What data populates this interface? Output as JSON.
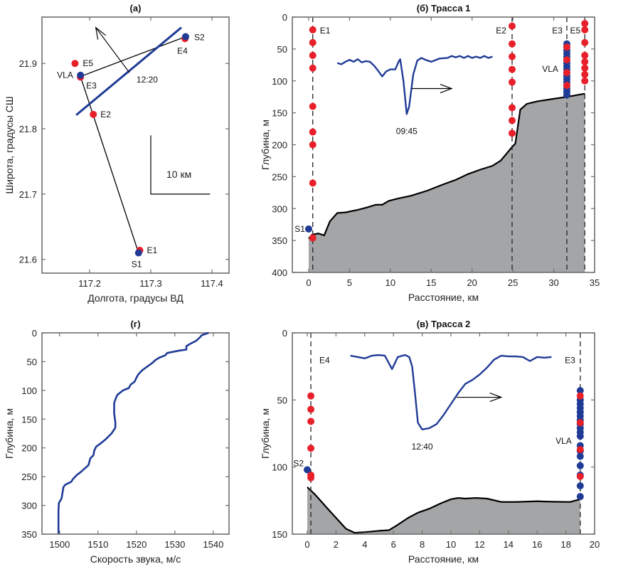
{
  "colors": {
    "red": "#e8202a",
    "blue": "#1f3b96",
    "line": "#1f3b96",
    "seabed": "#a3a5a7",
    "axis": "#6e6e6e"
  },
  "chart_data": [
    {
      "id": "a",
      "type": "scatter",
      "title": "(a)",
      "xlabel": "Долгота, градусы ВД",
      "ylabel": "Широта, градусы СШ",
      "xlim": [
        117.122,
        117.428
      ],
      "ylim": [
        21.579,
        21.971
      ],
      "xticks": [
        117.2,
        117.3,
        117.4
      ],
      "xtick_labels": [
        "117.2",
        "117.3",
        "117.4"
      ],
      "yticks": [
        21.6,
        21.7,
        21.8,
        21.9
      ],
      "ytick_labels": [
        "21.6",
        "21.7",
        "21.8",
        "21.9"
      ],
      "points": [
        {
          "name": "E1",
          "x": 117.282,
          "y": 21.614,
          "color": "red",
          "label": "E1"
        },
        {
          "name": "S1",
          "x": 117.28,
          "y": 21.61,
          "color": "blue",
          "label": "S1"
        },
        {
          "name": "E2",
          "x": 117.206,
          "y": 21.822,
          "color": "red",
          "label": "E2"
        },
        {
          "name": "E3",
          "x": 117.185,
          "y": 21.879,
          "color": "red",
          "label": "E3"
        },
        {
          "name": "VLA",
          "x": 117.185,
          "y": 21.882,
          "color": "blue",
          "label": "VLA"
        },
        {
          "name": "E5",
          "x": 117.176,
          "y": 21.9,
          "color": "red",
          "label": "E5"
        },
        {
          "name": "E4",
          "x": 117.356,
          "y": 21.938,
          "color": "red",
          "label": "E4"
        },
        {
          "name": "S2",
          "x": 117.357,
          "y": 21.941,
          "color": "blue",
          "label": "S2"
        }
      ],
      "tracks": [
        {
          "name": "track-1",
          "points": [
            [
              117.28,
              21.61
            ],
            [
              117.185,
              21.88
            ]
          ]
        },
        {
          "name": "track-2",
          "points": [
            [
              117.185,
              21.88
            ],
            [
              117.357,
              21.941
            ]
          ]
        }
      ],
      "front_line": {
        "points": [
          [
            117.178,
            21.821
          ],
          [
            117.35,
            21.955
          ]
        ],
        "label": "12:20"
      },
      "propagation_arrow": {
        "from": [
          117.265,
          21.886
        ],
        "to": [
          117.21,
          21.955
        ]
      },
      "scale_bar": {
        "label": "10 км",
        "corner": [
          117.3,
          21.7
        ],
        "x_end": 117.397,
        "y_end": 21.79
      }
    },
    {
      "id": "b",
      "type": "area",
      "title": "(б) Трасса 1",
      "xlabel": "Расстояние, км",
      "ylabel": "Глубина, м",
      "xlim": [
        -2,
        35
      ],
      "ylim": [
        0,
        400
      ],
      "y_inverted": true,
      "xticks": [
        0,
        5,
        10,
        15,
        20,
        25,
        30,
        35
      ],
      "xtick_labels": [
        "0",
        "5",
        "10",
        "15",
        "20",
        "25",
        "30",
        "35"
      ],
      "yticks": [
        0,
        50,
        100,
        150,
        200,
        250,
        300,
        350,
        400
      ],
      "ytick_labels": [
        "0",
        "50",
        "100",
        "150",
        "200",
        "250",
        "300",
        "350",
        "400"
      ],
      "bathymetry": [
        [
          0,
          347
        ],
        [
          0.4,
          341
        ],
        [
          1.2,
          339
        ],
        [
          1.9,
          342
        ],
        [
          2.6,
          320
        ],
        [
          3.5,
          307
        ],
        [
          4.5,
          306
        ],
        [
          6,
          302
        ],
        [
          7.2,
          298
        ],
        [
          8.2,
          294
        ],
        [
          9,
          294
        ],
        [
          9.8,
          288
        ],
        [
          11,
          284
        ],
        [
          12.5,
          280
        ],
        [
          14.5,
          272
        ],
        [
          16.5,
          262
        ],
        [
          18,
          255
        ],
        [
          19.5,
          246
        ],
        [
          21,
          239
        ],
        [
          22.5,
          233
        ],
        [
          23.5,
          225
        ],
        [
          24.8,
          205
        ],
        [
          25.3,
          198
        ],
        [
          25.9,
          145
        ],
        [
          26.7,
          136
        ],
        [
          28,
          132
        ],
        [
          30,
          128
        ],
        [
          31.6,
          125
        ],
        [
          33.8,
          120
        ]
      ],
      "stations": [
        {
          "name": "E1",
          "x": 0.5,
          "label": "E1",
          "red_depths": [
            20,
            40,
            60,
            80,
            140,
            180,
            200,
            260,
            346
          ],
          "blue_depths": []
        },
        {
          "name": "E2",
          "x": 24.9,
          "label": "E2",
          "red_depths": [
            14,
            42,
            62,
            82,
            102,
            142,
            162,
            182
          ],
          "blue_depths": []
        },
        {
          "name": "E3",
          "x": 31.6,
          "label": "E3",
          "red_depths": [
            47,
            67,
            87,
            107
          ],
          "blue_depths": [
            42,
            47,
            52,
            57,
            62,
            67,
            72,
            77,
            82,
            87,
            92,
            97,
            102,
            107,
            112,
            117,
            122
          ]
        },
        {
          "name": "E5",
          "x": 33.8,
          "label": "E5",
          "red_depths": [
            10,
            20,
            40,
            60,
            70,
            80,
            90,
            100
          ],
          "blue_depths": []
        }
      ],
      "source": {
        "name": "S1",
        "x": 0,
        "depth": 332,
        "label": "S1"
      },
      "vla_label": "VLA",
      "wave_profile": [
        [
          3.5,
          72
        ],
        [
          4,
          74
        ],
        [
          4.5,
          70
        ],
        [
          5,
          67
        ],
        [
          5.5,
          70
        ],
        [
          6,
          66
        ],
        [
          6.5,
          71
        ],
        [
          7,
          69
        ],
        [
          7.5,
          70
        ],
        [
          8,
          76
        ],
        [
          8.5,
          84
        ],
        [
          9,
          93
        ],
        [
          9.5,
          85
        ],
        [
          10,
          82
        ],
        [
          10.6,
          82
        ],
        [
          11,
          70
        ],
        [
          11.2,
          66
        ],
        [
          11.6,
          100
        ],
        [
          12,
          152
        ],
        [
          12.3,
          140
        ],
        [
          12.8,
          90
        ],
        [
          13.3,
          68
        ],
        [
          13.8,
          64
        ],
        [
          14.3,
          67
        ],
        [
          15,
          70
        ],
        [
          16,
          65
        ],
        [
          17,
          64
        ],
        [
          17.5,
          61
        ],
        [
          18,
          63
        ],
        [
          18.5,
          61
        ],
        [
          19,
          64
        ],
        [
          19.5,
          61
        ],
        [
          20,
          64
        ],
        [
          20.5,
          62
        ],
        [
          21,
          64
        ],
        [
          21.5,
          61
        ],
        [
          22,
          64
        ],
        [
          22.5,
          62
        ]
      ],
      "wave_label": "09:45",
      "arrow": {
        "from": [
          12.6,
          112
        ],
        "to": [
          17.5,
          112
        ]
      }
    },
    {
      "id": "g",
      "type": "line",
      "title": "(г)",
      "xlabel": "Скорость звука, м/с",
      "ylabel": "Глубина, м",
      "xlim": [
        1495.4,
        1544.1
      ],
      "ylim": [
        0,
        350
      ],
      "y_inverted": true,
      "xticks": [
        1500,
        1510,
        1520,
        1530,
        1540
      ],
      "xtick_labels": [
        "1500",
        "1510",
        "1520",
        "1530",
        "1540"
      ],
      "yticks": [
        0,
        50,
        100,
        150,
        200,
        250,
        300,
        350
      ],
      "ytick_labels": [
        "0",
        "50",
        "100",
        "150",
        "200",
        "250",
        "300",
        "350"
      ],
      "series": [
        {
          "name": "sound-speed-profile",
          "points": [
            [
              1538.8,
              0
            ],
            [
              1537,
              4
            ],
            [
              1536.5,
              8
            ],
            [
              1535.5,
              14
            ],
            [
              1534,
              19
            ],
            [
              1533,
              23
            ],
            [
              1533,
              29
            ],
            [
              1531,
              31
            ],
            [
              1528,
              35
            ],
            [
              1527.5,
              39
            ],
            [
              1526,
              43
            ],
            [
              1525,
              47
            ],
            [
              1524,
              53
            ],
            [
              1522.5,
              60
            ],
            [
              1521.5,
              65
            ],
            [
              1520.5,
              72
            ],
            [
              1520,
              78
            ],
            [
              1519.5,
              85
            ],
            [
              1518.5,
              90
            ],
            [
              1518,
              96
            ],
            [
              1516.5,
              100
            ],
            [
              1515,
              108
            ],
            [
              1514.5,
              116
            ],
            [
              1514.2,
              122
            ],
            [
              1514.2,
              140
            ],
            [
              1514.5,
              155
            ],
            [
              1514.5,
              165
            ],
            [
              1513.5,
              175
            ],
            [
              1512,
              185
            ],
            [
              1510.5,
              193
            ],
            [
              1509.5,
              198
            ],
            [
              1509,
              205
            ],
            [
              1508.8,
              213
            ],
            [
              1508,
              218
            ],
            [
              1507.5,
              230
            ],
            [
              1506.5,
              236
            ],
            [
              1505.5,
              242
            ],
            [
              1504.5,
              247
            ],
            [
              1503.5,
              254
            ],
            [
              1503,
              259
            ],
            [
              1501.5,
              264
            ],
            [
              1501,
              268
            ],
            [
              1500.8,
              276
            ],
            [
              1500.5,
              288
            ],
            [
              1499.8,
              296
            ],
            [
              1499.7,
              310
            ],
            [
              1499.7,
              349
            ]
          ]
        }
      ]
    },
    {
      "id": "v",
      "type": "area",
      "title": "(в) Трасса 2",
      "xlabel": "Расстояние, км",
      "ylabel": "Глубина, м",
      "xlim": [
        -1.04,
        20
      ],
      "ylim": [
        0,
        150
      ],
      "y_inverted": true,
      "xticks": [
        0,
        2,
        4,
        6,
        8,
        10,
        12,
        14,
        16,
        18,
        20
      ],
      "xtick_labels": [
        "0",
        "2",
        "4",
        "6",
        "8",
        "10",
        "12",
        "14",
        "16",
        "18",
        "20"
      ],
      "yticks": [
        0,
        50,
        100,
        150
      ],
      "ytick_labels": [
        "0",
        "50",
        "100",
        "150"
      ],
      "bathymetry": [
        [
          0,
          115
        ],
        [
          0.5,
          120
        ],
        [
          1.5,
          132
        ],
        [
          2.7,
          146
        ],
        [
          3.3,
          149
        ],
        [
          4,
          148.5
        ],
        [
          5,
          147.5
        ],
        [
          5.7,
          147
        ],
        [
          6.3,
          143
        ],
        [
          7,
          138
        ],
        [
          7.7,
          134
        ],
        [
          8.5,
          131
        ],
        [
          9.3,
          127
        ],
        [
          10,
          124
        ],
        [
          10.5,
          123
        ],
        [
          11,
          123.5
        ],
        [
          11.7,
          123
        ],
        [
          12.5,
          123.5
        ],
        [
          13.5,
          126
        ],
        [
          14.5,
          126
        ],
        [
          16,
          125.5
        ],
        [
          17,
          125.8
        ],
        [
          18.3,
          126
        ],
        [
          19,
          124
        ]
      ],
      "stations": [
        {
          "name": "E4",
          "x": 0.25,
          "label": "E4",
          "red_depths": [
            47,
            57,
            66,
            86,
            106,
            108
          ],
          "blue_depths": []
        },
        {
          "name": "E3",
          "x": 19,
          "label": "E3",
          "red_depths": [
            47,
            67,
            87,
            107
          ],
          "blue_depths": [
            43,
            50,
            53,
            56,
            59,
            62,
            65,
            68,
            71,
            74,
            77,
            84,
            88,
            92,
            99,
            106,
            114,
            122
          ]
        }
      ],
      "source": {
        "name": "S2",
        "x": 0,
        "depth": 102,
        "label": "S2"
      },
      "vla_label": "VLA",
      "wave_profile": [
        [
          3,
          17
        ],
        [
          3.5,
          18
        ],
        [
          4,
          19
        ],
        [
          4.5,
          17
        ],
        [
          5,
          16.5
        ],
        [
          5.4,
          17
        ],
        [
          5.9,
          27
        ],
        [
          6.3,
          18
        ],
        [
          6.8,
          16.5
        ],
        [
          7.1,
          18
        ],
        [
          7.3,
          25
        ],
        [
          7.5,
          45
        ],
        [
          7.7,
          67
        ],
        [
          8,
          72
        ],
        [
          8.5,
          71
        ],
        [
          9,
          68
        ],
        [
          9.5,
          61
        ],
        [
          10,
          53
        ],
        [
          10.5,
          45
        ],
        [
          11,
          38
        ],
        [
          11.5,
          35
        ],
        [
          12,
          31
        ],
        [
          12.5,
          26
        ],
        [
          13,
          20
        ],
        [
          13.5,
          17
        ],
        [
          14,
          17.5
        ],
        [
          14.5,
          17.5
        ],
        [
          15,
          18
        ],
        [
          15.5,
          21
        ],
        [
          16,
          18
        ],
        [
          16.5,
          18.5
        ],
        [
          17,
          18
        ]
      ],
      "wave_label": "12:40",
      "arrow": {
        "from": [
          10.4,
          48
        ],
        "to": [
          13.5,
          48
        ]
      }
    }
  ]
}
